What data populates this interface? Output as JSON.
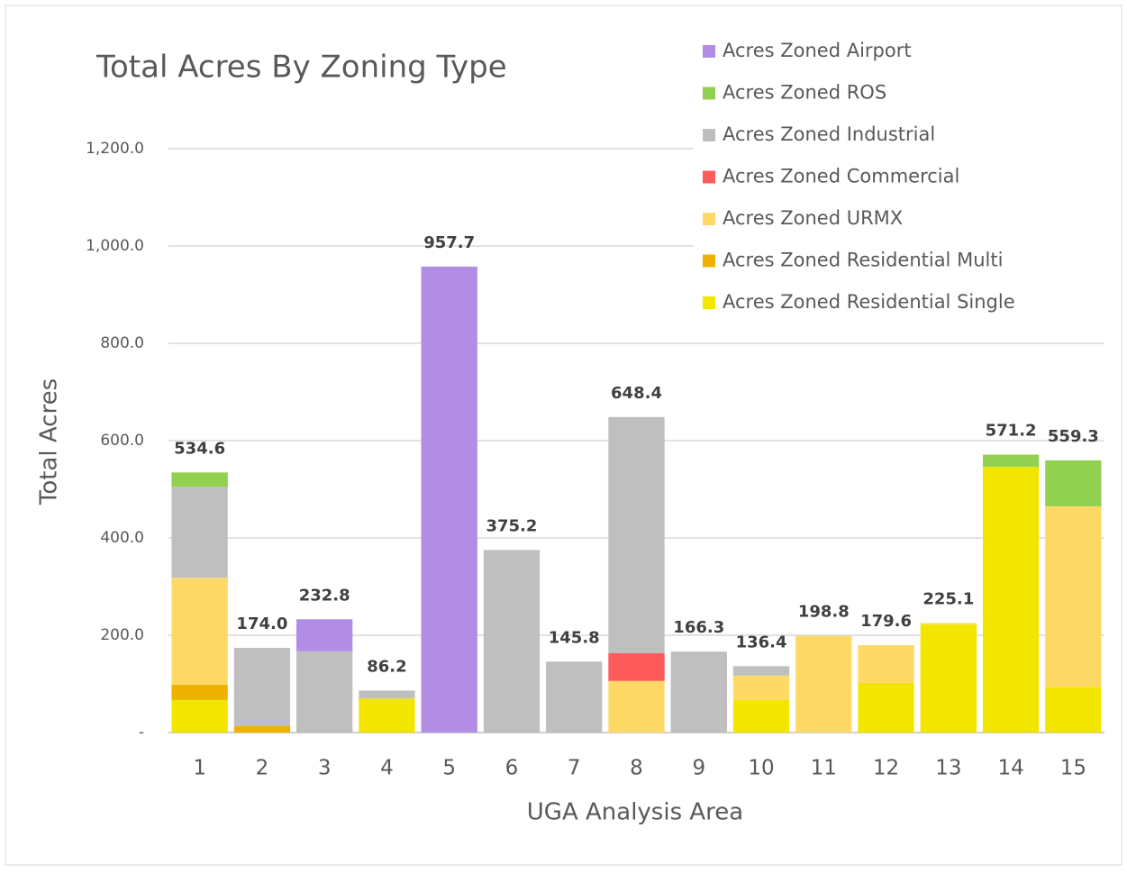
{
  "chart_data": {
    "type": "stacked_bar",
    "title": "Total Acres By Zoning Type",
    "x_label": "UGA Analysis Area",
    "y_label": "Total Acres",
    "categories": [
      "1",
      "2",
      "3",
      "4",
      "5",
      "6",
      "7",
      "8",
      "9",
      "10",
      "11",
      "12",
      "13",
      "14",
      "15"
    ],
    "series": [
      {
        "name": "Acres Zoned Airport",
        "color": "#b28de6",
        "values": [
          0,
          0,
          65.8,
          0,
          957.7,
          0,
          0,
          0,
          0,
          0,
          0,
          0,
          0,
          0,
          0
        ]
      },
      {
        "name": "Acres Zoned ROS",
        "color": "#92d050",
        "values": [
          29.6,
          0,
          0,
          0,
          0,
          0,
          0,
          0,
          0,
          0,
          0,
          0,
          0,
          25.2,
          94.3
        ]
      },
      {
        "name": "Acres Zoned Industrial",
        "color": "#bfbfbf",
        "values": [
          187,
          161,
          167,
          16.2,
          0,
          375.2,
          145.8,
          485.4,
          166.3,
          19.4,
          0,
          0,
          0,
          0,
          0
        ]
      },
      {
        "name": "Acres Zoned Commercial",
        "color": "#ff5b5b",
        "values": [
          0,
          0,
          0,
          0,
          0,
          0,
          0,
          57,
          0,
          0,
          0,
          0,
          0,
          0,
          0
        ]
      },
      {
        "name": "Acres Zoned URMX",
        "color": "#ffd966",
        "values": [
          220,
          0,
          0,
          0,
          0,
          0,
          0,
          106,
          0,
          50,
          198.8,
          77.6,
          3.1,
          0,
          371
        ]
      },
      {
        "name": "Acres Zoned Residential Multi",
        "color": "#f0b000",
        "values": [
          31,
          13,
          0,
          0,
          0,
          0,
          0,
          0,
          0,
          0,
          0,
          0,
          0,
          0,
          0
        ]
      },
      {
        "name": "Acres Zoned Residential Single",
        "color": "#f2e600",
        "values": [
          67,
          0,
          0,
          70,
          0,
          0,
          0,
          0,
          0,
          67,
          0,
          102,
          222,
          546,
          94
        ]
      }
    ],
    "totals": [
      534.6,
      174,
      232.8,
      86.2,
      957.7,
      375.2,
      145.8,
      648.4,
      166.3,
      136.4,
      198.8,
      179.6,
      225.1,
      571.2,
      559.3
    ],
    "totals_labels": [
      "534.6",
      "174.0",
      "232.8",
      "86.2",
      "957.7",
      "375.2",
      "145.8",
      "648.4",
      "166.3",
      "136.4",
      "198.8",
      "179.6",
      "225.1",
      "571.2",
      "559.3"
    ],
    "ylim": [
      0,
      1200
    ],
    "yticks": [
      {
        "value": 0,
        "label": "-"
      },
      {
        "value": 200,
        "label": "200.0"
      },
      {
        "value": 400,
        "label": "400.0"
      },
      {
        "value": 600,
        "label": "600.0"
      },
      {
        "value": 800,
        "label": "800.0"
      },
      {
        "value": 1000,
        "label": "1,000.0"
      },
      {
        "value": 1200,
        "label": "1,200.0"
      }
    ],
    "grid": true,
    "legend": "top-right"
  }
}
